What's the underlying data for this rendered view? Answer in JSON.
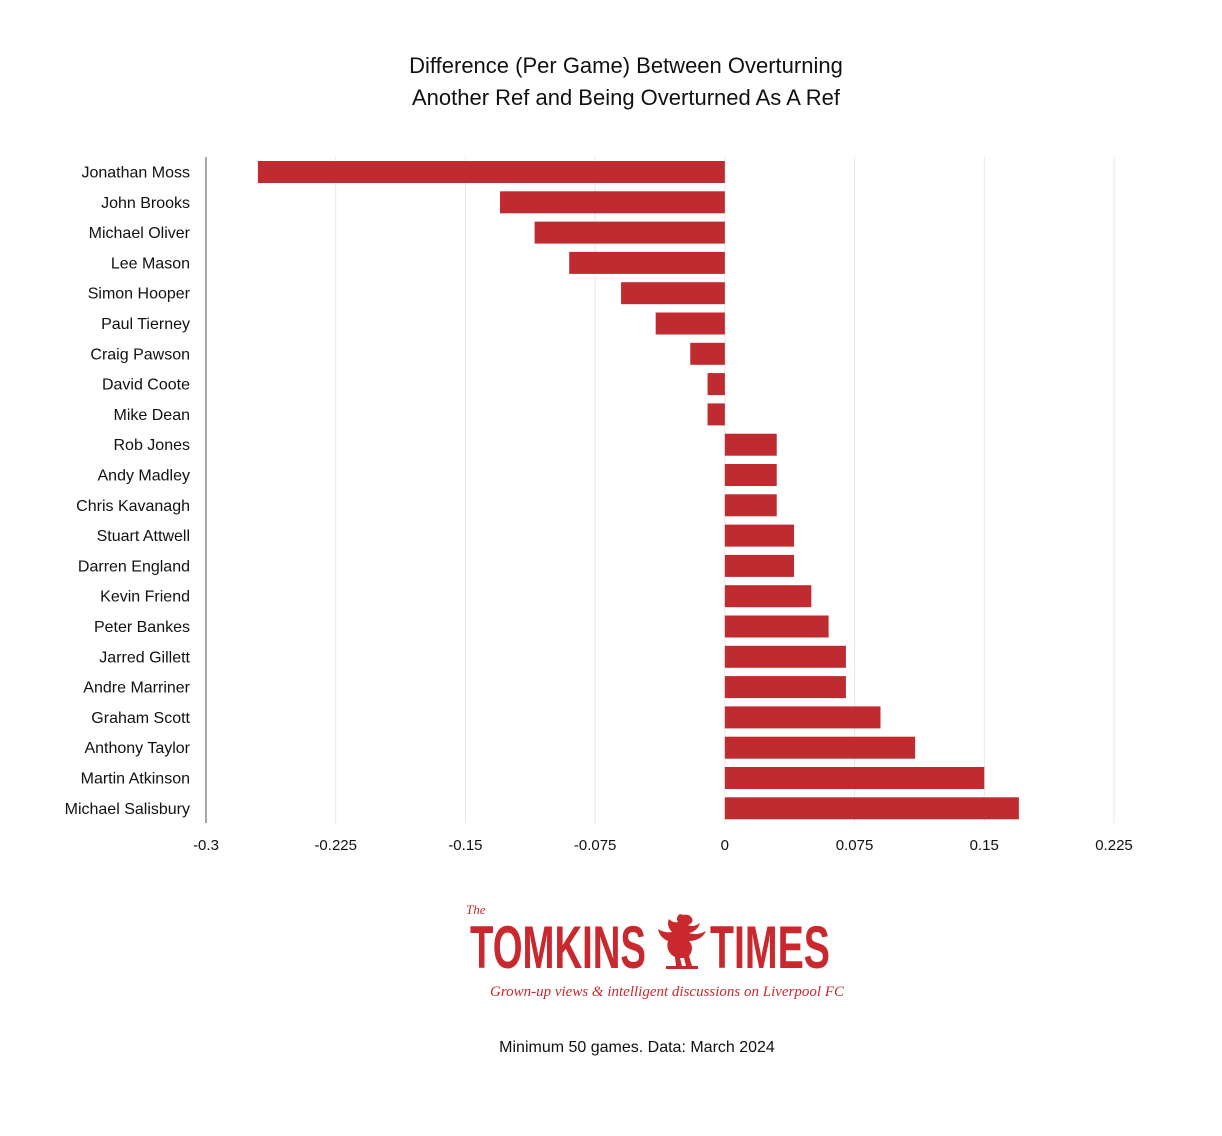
{
  "chart_data": {
    "type": "bar",
    "orientation": "horizontal",
    "title": [
      "Difference (Per Game) Between Overturning",
      "Another Ref and Being Overturned As A Ref"
    ],
    "categories": [
      "Jonathan Moss",
      "John Brooks",
      "Michael Oliver",
      "Lee Mason",
      "Simon Hooper",
      "Paul Tierney",
      "Craig Pawson",
      "David Coote",
      "Mike Dean",
      "Rob Jones",
      "Andy Madley",
      "Chris Kavanagh",
      "Stuart Attwell",
      "Darren England",
      "Kevin Friend",
      "Peter Bankes",
      "Jarred Gillett",
      "Andre Marriner",
      "Graham Scott",
      "Anthony Taylor",
      "Martin Atkinson",
      "Michael Salisbury"
    ],
    "values": [
      -0.27,
      -0.13,
      -0.11,
      -0.09,
      -0.06,
      -0.04,
      -0.02,
      -0.01,
      -0.01,
      0.03,
      0.03,
      0.03,
      0.04,
      0.04,
      0.05,
      0.06,
      0.07,
      0.07,
      0.09,
      0.11,
      0.15,
      0.17
    ],
    "xlim": [
      -0.3,
      0.225
    ],
    "ticks": [
      -0.3,
      -0.225,
      -0.15,
      -0.075,
      0,
      0.075,
      0.15,
      0.225
    ],
    "tick_labels": [
      "-0.3",
      "-0.225",
      "-0.15",
      "-0.075",
      "0",
      "0.075",
      "0.15",
      "0.225"
    ],
    "grid": true,
    "bar_color": "#bf2b31",
    "grid_color": "#e6e6e6"
  },
  "branding": {
    "the": "The",
    "name_left": "TOMKINS",
    "name_right": "TIMES",
    "logo_icon": "liver-bird-icon",
    "tagline": "Grown-up views & intelligent discussions on Liverpool FC",
    "color": "#c8282e"
  },
  "footnote": "Minimum 50 games. Data: March 2024"
}
